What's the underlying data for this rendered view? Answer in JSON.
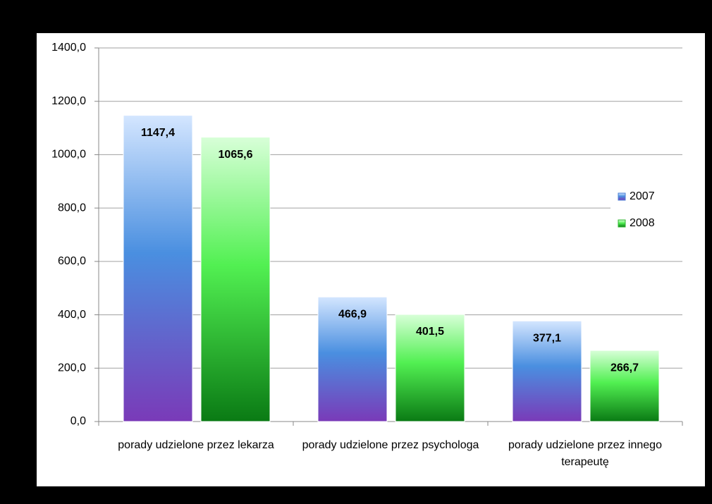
{
  "chart_data": {
    "type": "bar",
    "categories": [
      "porady udzielone przez lekarza",
      "porady udzielone przez psychologa",
      "porady udzielone przez innego terapeutę"
    ],
    "series": [
      {
        "name": "2007",
        "color": "#4a7fd6",
        "values": [
          1147.4,
          466.9,
          377.1
        ],
        "value_labels": [
          "1147,4",
          "466,9",
          "377,1"
        ]
      },
      {
        "name": "2008",
        "color": "#2fb52f",
        "values": [
          1065.6,
          401.5,
          266.7
        ],
        "value_labels": [
          "1065,6",
          "401,5",
          "266,7"
        ]
      }
    ],
    "ylim": [
      0,
      1400
    ],
    "yticks": [
      {
        "value": 0,
        "label": "0,0"
      },
      {
        "value": 200,
        "label": "200,0"
      },
      {
        "value": 400,
        "label": "400,0"
      },
      {
        "value": 600,
        "label": "600,0"
      },
      {
        "value": 800,
        "label": "800,0"
      },
      {
        "value": 1000,
        "label": "1000,0"
      },
      {
        "value": 1200,
        "label": "1200,0"
      },
      {
        "value": 1400,
        "label": "1400,0"
      }
    ],
    "grid": true,
    "legend": "right"
  }
}
